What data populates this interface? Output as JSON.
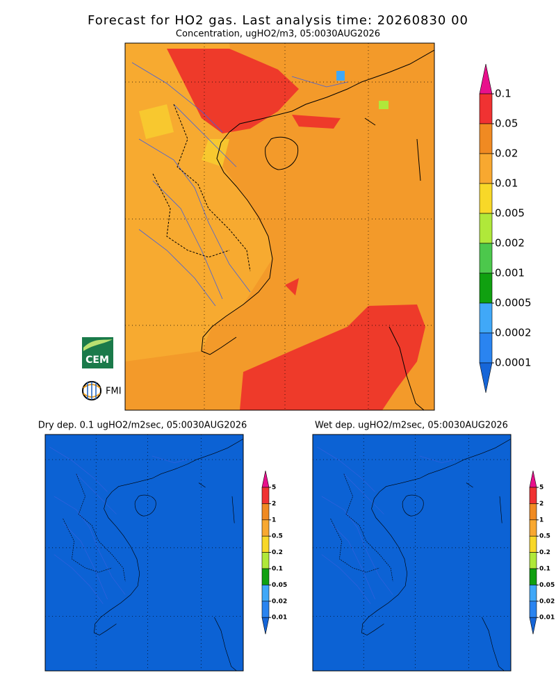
{
  "header": {
    "title": "Forecast for HO2 gas. Last analysis time: 20260830 00",
    "subtitle": "Concentration, ugHO2/m3, 05:0030AUG2026"
  },
  "main_colorbar": {
    "labels": [
      "0.1",
      "0.05",
      "0.02",
      "0.01",
      "0.005",
      "0.002",
      "0.001",
      "0.0005",
      "0.0002",
      "0.0001"
    ],
    "colors": [
      "#e8108c",
      "#f03232",
      "#f08a22",
      "#f8a830",
      "#f8d828",
      "#b0e83a",
      "#4cc84c",
      "#10a010",
      "#40a8f8",
      "#2a84f0",
      "#1666d8"
    ]
  },
  "logos": [
    "CEM",
    "FMI"
  ],
  "panels": [
    {
      "title": "Dry dep. 0.1 ugHO2/m2sec, 05:0030AUG2026",
      "colorbar_labels": [
        "5",
        "2",
        "1",
        "0.5",
        "0.2",
        "0.1",
        "0.05",
        "0.02",
        "0.01"
      ]
    },
    {
      "title": "Wet dep. ugHO2/m2sec, 05:0030AUG2026",
      "colorbar_labels": [
        "5",
        "2",
        "1",
        "0.5",
        "0.2",
        "0.1",
        "0.05",
        "0.02",
        "0.01"
      ]
    }
  ],
  "panel_colorbar_colors": [
    "#e8108c",
    "#f03232",
    "#f08a22",
    "#f8a830",
    "#f8d828",
    "#b0e83a",
    "#10a010",
    "#40a8f8",
    "#2a84f0",
    "#1666d8"
  ]
}
